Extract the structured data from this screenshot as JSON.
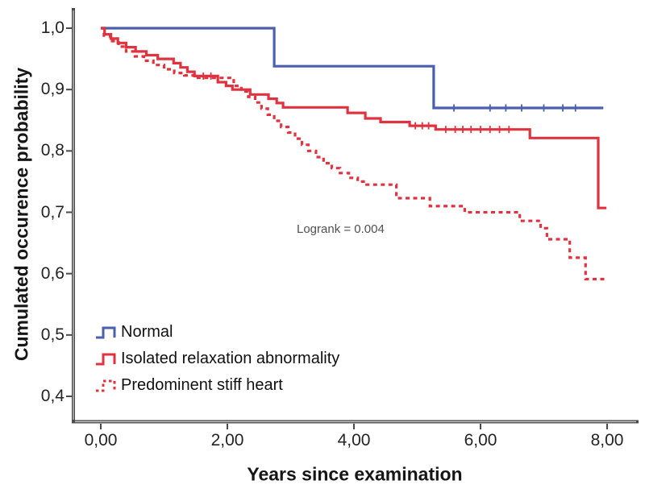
{
  "figure": {
    "background": "#ffffff",
    "axis_color": "#4a4a4a"
  },
  "legend": [
    {
      "label": "Normal",
      "color": "#4a5fad",
      "dash": false
    },
    {
      "label": "Isolated relaxation abnormality",
      "color": "#e03340",
      "dash": false
    },
    {
      "label": "Predominent stiff heart",
      "color": "#e03340",
      "dash": true
    }
  ],
  "chart_data": {
    "type": "line",
    "subtype": "kaplan-meier-step",
    "title": "",
    "xlabel": "Years since examination",
    "ylabel": "Cumulated occurence probability",
    "xlim": [
      0,
      8
    ],
    "ylim": [
      0.4,
      1.0
    ],
    "grid": false,
    "legend_position": "lower-left-inside",
    "xticks": {
      "values": [
        0,
        2,
        4,
        6,
        8
      ],
      "labels": [
        "0,00",
        "2,00",
        "4,00",
        "6,00",
        "8,00"
      ]
    },
    "yticks": {
      "values": [
        1.0,
        0.9,
        0.8,
        0.7,
        0.6,
        0.5,
        0.4
      ],
      "labels": [
        "1,0",
        "0,9",
        "0,8",
        "0,7",
        "0,6",
        "0,5",
        "0,4"
      ]
    },
    "annotation": {
      "text": "Logrank = 0.004",
      "x": 3.1,
      "y": 0.668
    },
    "series": [
      {
        "id": "normal",
        "name": "Normal",
        "color": "#4a5fad",
        "dash": false,
        "points": [
          [
            0,
            1.0
          ],
          [
            2.74,
            0.938
          ],
          [
            5.26,
            0.87
          ],
          [
            7.94,
            0.87
          ]
        ],
        "censors": [
          [
            5.58,
            0.87
          ],
          [
            6.15,
            0.87
          ],
          [
            6.4,
            0.87
          ],
          [
            6.65,
            0.87
          ],
          [
            7.0,
            0.87
          ],
          [
            7.3,
            0.87
          ],
          [
            7.5,
            0.87
          ]
        ]
      },
      {
        "id": "isolated-relaxation-abnormality",
        "name": "Isolated relaxation abnormality",
        "color": "#e03340",
        "dash": false,
        "points": [
          [
            0,
            1.0
          ],
          [
            0.06,
            0.99
          ],
          [
            0.16,
            0.983
          ],
          [
            0.27,
            0.976
          ],
          [
            0.4,
            0.969
          ],
          [
            0.55,
            0.962
          ],
          [
            0.72,
            0.956
          ],
          [
            0.9,
            0.95
          ],
          [
            1.15,
            0.943
          ],
          [
            1.26,
            0.936
          ],
          [
            1.37,
            0.929
          ],
          [
            1.48,
            0.922
          ],
          [
            1.85,
            0.912
          ],
          [
            1.98,
            0.906
          ],
          [
            2.08,
            0.9
          ],
          [
            2.36,
            0.892
          ],
          [
            2.65,
            0.885
          ],
          [
            2.78,
            0.878
          ],
          [
            2.88,
            0.871
          ],
          [
            3.9,
            0.862
          ],
          [
            4.18,
            0.853
          ],
          [
            4.42,
            0.847
          ],
          [
            4.88,
            0.841
          ],
          [
            5.29,
            0.835
          ],
          [
            6.78,
            0.821
          ],
          [
            7.86,
            0.707
          ],
          [
            7.99,
            0.707
          ]
        ],
        "censors": [
          [
            1.62,
            0.922
          ],
          [
            1.74,
            0.922
          ],
          [
            4.97,
            0.841
          ],
          [
            5.08,
            0.841
          ],
          [
            5.18,
            0.841
          ],
          [
            5.45,
            0.835
          ],
          [
            5.6,
            0.835
          ],
          [
            5.72,
            0.835
          ],
          [
            5.85,
            0.835
          ],
          [
            6.0,
            0.835
          ],
          [
            6.15,
            0.835
          ],
          [
            6.3,
            0.835
          ],
          [
            6.45,
            0.835
          ]
        ]
      },
      {
        "id": "predominent-stiff-heart",
        "name": "Predominent stiff heart",
        "color": "#e03340",
        "dash": true,
        "points": [
          [
            0,
            1.0
          ],
          [
            0.05,
            0.988
          ],
          [
            0.15,
            0.979
          ],
          [
            0.28,
            0.97
          ],
          [
            0.4,
            0.962
          ],
          [
            0.54,
            0.954
          ],
          [
            0.68,
            0.947
          ],
          [
            0.83,
            0.94
          ],
          [
            1.0,
            0.933
          ],
          [
            1.16,
            0.927
          ],
          [
            1.32,
            0.923
          ],
          [
            1.48,
            0.919
          ],
          [
            2.1,
            0.906
          ],
          [
            2.22,
            0.897
          ],
          [
            2.33,
            0.888
          ],
          [
            2.44,
            0.879
          ],
          [
            2.54,
            0.869
          ],
          [
            2.64,
            0.859
          ],
          [
            2.74,
            0.849
          ],
          [
            2.85,
            0.839
          ],
          [
            2.96,
            0.83
          ],
          [
            3.07,
            0.82
          ],
          [
            3.18,
            0.81
          ],
          [
            3.28,
            0.8
          ],
          [
            3.4,
            0.79
          ],
          [
            3.52,
            0.78
          ],
          [
            3.65,
            0.772
          ],
          [
            3.78,
            0.764
          ],
          [
            3.92,
            0.756
          ],
          [
            4.06,
            0.75
          ],
          [
            4.2,
            0.745
          ],
          [
            4.67,
            0.723
          ],
          [
            5.2,
            0.71
          ],
          [
            5.75,
            0.7
          ],
          [
            6.62,
            0.686
          ],
          [
            6.95,
            0.674
          ],
          [
            7.05,
            0.656
          ],
          [
            7.41,
            0.626
          ],
          [
            7.66,
            0.591
          ],
          [
            7.96,
            0.591
          ]
        ],
        "censors": []
      }
    ]
  }
}
